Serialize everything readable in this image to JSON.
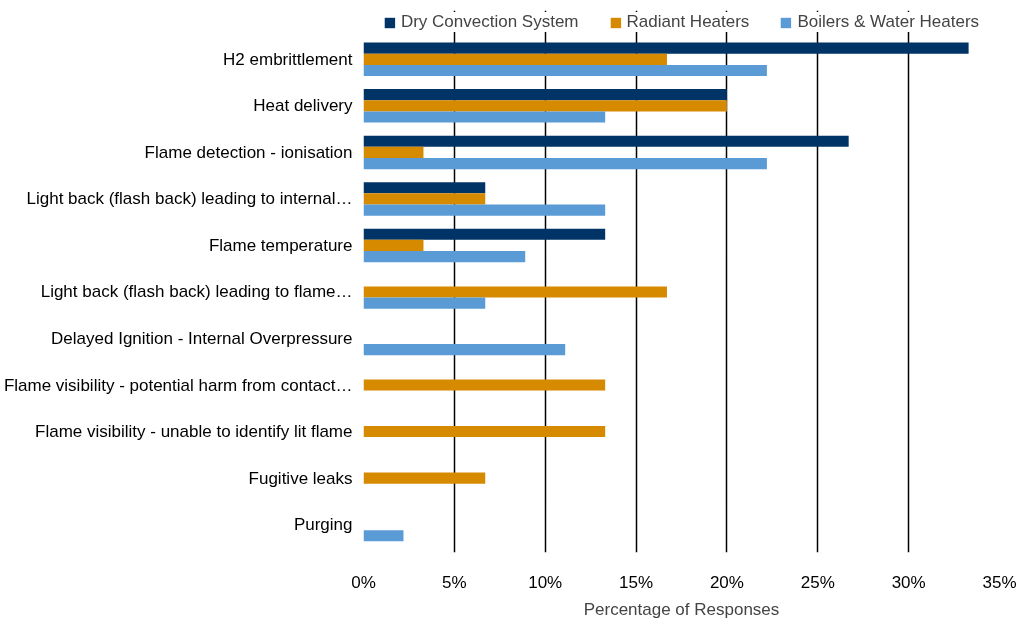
{
  "chart_data": {
    "type": "bar",
    "orientation": "horizontal",
    "xlabel": "Percentage of Responses",
    "categories": [
      "H2 embrittlement",
      "Heat delivery",
      "Flame detection - ionisation",
      "Light back (flash back) leading to internal…",
      "Flame temperature",
      "Light back (flash back) leading to flame…",
      "Delayed Ignition - Internal Overpressure",
      "Flame visibility - potential harm from contact…",
      "Flame visibility - unable to identify lit flame",
      "Fugitive leaks",
      "Purging"
    ],
    "series": [
      {
        "name": "Dry Convection System",
        "color": "#003366",
        "values": [
          33.3,
          20,
          26.7,
          6.7,
          13.3,
          null,
          null,
          null,
          null,
          null,
          null
        ]
      },
      {
        "name": "Radiant Heaters",
        "color": "#d68a00",
        "values": [
          16.7,
          20,
          3.3,
          6.7,
          3.3,
          16.7,
          null,
          13.3,
          13.3,
          6.7,
          null
        ]
      },
      {
        "name": "Boilers & Water Heaters",
        "color": "#5b9bd5",
        "values": [
          22.2,
          13.3,
          22.2,
          13.3,
          8.9,
          6.7,
          11.1,
          null,
          null,
          null,
          2.2
        ]
      }
    ],
    "xlim": [
      0,
      35
    ],
    "xticks": [
      {
        "value": 0,
        "label": "0%"
      },
      {
        "value": 5,
        "label": "5%"
      },
      {
        "value": 10,
        "label": "10%"
      },
      {
        "value": 15,
        "label": "15%"
      },
      {
        "value": 20,
        "label": "20%"
      },
      {
        "value": 25,
        "label": "25%"
      },
      {
        "value": 30,
        "label": "30%"
      },
      {
        "value": 35,
        "label": "35%"
      }
    ],
    "grid": "x",
    "legend": "top"
  }
}
